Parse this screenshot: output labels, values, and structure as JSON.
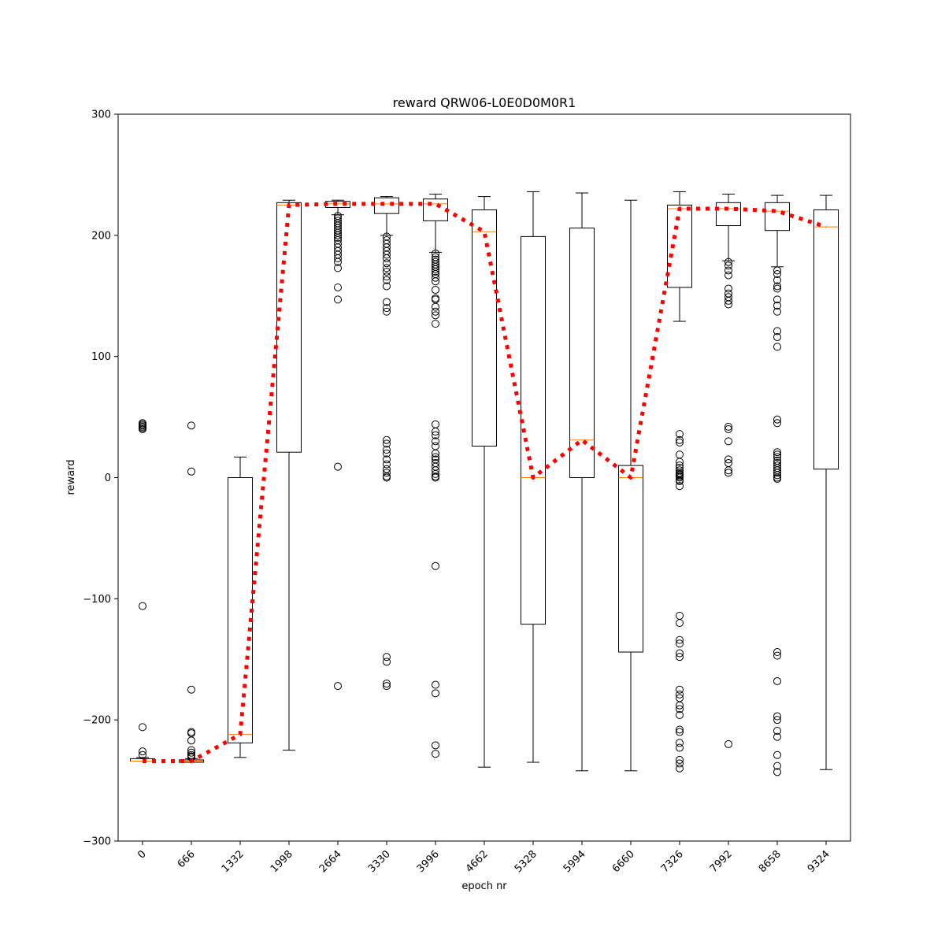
{
  "chart_data": {
    "type": "boxplot",
    "title": "reward QRW06-L0E0D0M0R1",
    "xlabel": "epoch nr",
    "ylabel": "reward",
    "ylim": [
      -300,
      300
    ],
    "yticks": [
      -300,
      -200,
      -100,
      0,
      100,
      200,
      300
    ],
    "categories": [
      "0",
      "666",
      "1332",
      "1998",
      "2664",
      "3330",
      "3996",
      "4662",
      "5328",
      "5994",
      "6660",
      "7326",
      "7992",
      "8658",
      "9324"
    ],
    "grid": false,
    "colors": {
      "box": "#000000",
      "median": "#ff7f0e",
      "mean_line": "#ff0000",
      "outlier": "#000000"
    },
    "boxes": [
      {
        "whisker_low": -234,
        "q1": -234,
        "median": -234,
        "q3": -232,
        "whisker_high": -231,
        "outliers": [
          45,
          44,
          43,
          42,
          41,
          40,
          -106,
          -206,
          -226,
          -229
        ]
      },
      {
        "whisker_low": -235,
        "q1": -235,
        "median": -234,
        "q3": -233,
        "whisker_high": -232,
        "outliers": [
          43,
          5,
          -175,
          -210,
          -211,
          -217,
          -225,
          -227,
          -229,
          -230,
          -231
        ]
      },
      {
        "whisker_low": -231,
        "q1": -219,
        "median": -212,
        "q3": 0,
        "whisker_high": 17,
        "outliers": []
      },
      {
        "whisker_low": -225,
        "q1": 21,
        "median": 225,
        "q3": 227,
        "whisker_high": 229,
        "outliers": []
      },
      {
        "whisker_low": 217,
        "q1": 223,
        "median": 226,
        "q3": 228,
        "whisker_high": 229,
        "outliers": [
          216,
          214,
          212,
          210,
          208,
          206,
          204,
          202,
          200,
          198,
          196,
          193,
          190,
          187,
          184,
          181,
          178,
          173,
          157,
          147,
          9,
          -172
        ]
      },
      {
        "whisker_low": 200,
        "q1": 218,
        "median": 226,
        "q3": 231,
        "whisker_high": 232,
        "outliers": [
          199,
          196,
          193,
          190,
          187,
          184,
          181,
          177,
          173,
          170,
          166,
          163,
          158,
          145,
          140,
          137,
          31,
          28,
          23,
          20,
          15,
          11,
          7,
          4,
          1,
          0,
          -148,
          -152,
          -170,
          -172
        ]
      },
      {
        "whisker_low": 186,
        "q1": 212,
        "median": 226,
        "q3": 230,
        "whisker_high": 234,
        "outliers": [
          185,
          182,
          180,
          178,
          176,
          174,
          172,
          170,
          168,
          165,
          162,
          155,
          148,
          147,
          141,
          137,
          134,
          127,
          44,
          38,
          35,
          30,
          26,
          20,
          17,
          15,
          12,
          9,
          6,
          3,
          1,
          0,
          -73,
          -171,
          -178,
          -221,
          -228
        ]
      },
      {
        "whisker_low": -239,
        "q1": 26,
        "median": 203,
        "q3": 221,
        "whisker_high": 232,
        "outliers": []
      },
      {
        "whisker_low": -235,
        "q1": -121,
        "median": 0,
        "q3": 199,
        "whisker_high": 236,
        "outliers": []
      },
      {
        "whisker_low": -242,
        "q1": 0,
        "median": 31,
        "q3": 206,
        "whisker_high": 235,
        "outliers": []
      },
      {
        "whisker_low": -242,
        "q1": -144,
        "median": 0,
        "q3": 10,
        "whisker_high": 229,
        "outliers": []
      },
      {
        "whisker_low": 129,
        "q1": 157,
        "median": 222,
        "q3": 225,
        "whisker_high": 236,
        "outliers": [
          36,
          31,
          29,
          19,
          13,
          10,
          8,
          6,
          4,
          3,
          2,
          1,
          0,
          -2,
          -3,
          -7,
          -114,
          -120,
          -134,
          -137,
          -145,
          -148,
          -175,
          -179,
          -182,
          -188,
          -191,
          -196,
          -208,
          -210,
          -219,
          -223,
          -233,
          -236,
          -240
        ]
      },
      {
        "whisker_low": 179,
        "q1": 208,
        "median": 222,
        "q3": 227,
        "whisker_high": 234,
        "outliers": [
          178,
          175,
          171,
          167,
          156,
          152,
          149,
          146,
          143,
          42,
          40,
          30,
          15,
          12,
          6,
          4,
          -220
        ]
      },
      {
        "whisker_low": 174,
        "q1": 204,
        "median": 220,
        "q3": 227,
        "whisker_high": 233,
        "outliers": [
          171,
          168,
          163,
          158,
          156,
          147,
          142,
          137,
          121,
          116,
          108,
          48,
          45,
          21,
          19,
          17,
          14,
          12,
          10,
          8,
          6,
          4,
          2,
          0,
          -1,
          -144,
          -147,
          -168,
          -197,
          -200,
          -209,
          -214,
          -229,
          -238,
          -243
        ]
      },
      {
        "whisker_low": -241,
        "q1": 7,
        "median": 207,
        "q3": 221,
        "whisker_high": 233,
        "outliers": []
      }
    ],
    "mean_line": [
      -234,
      -234,
      -212,
      225,
      226,
      226,
      226,
      203,
      0,
      31,
      0,
      222,
      222,
      220,
      207
    ]
  }
}
